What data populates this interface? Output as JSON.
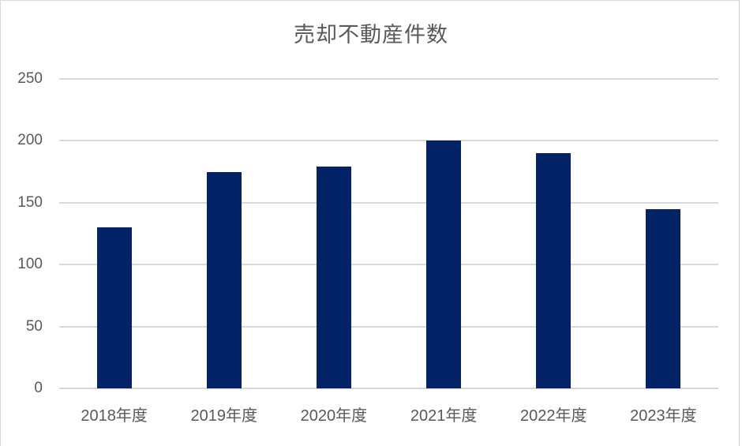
{
  "page": {
    "kind": "excel-style-column-chart-screenshot"
  },
  "colors": {
    "bar": "#042366",
    "gridline": "#d9d9d9",
    "axis_line": "#d6d6d6",
    "label_text": "#595959",
    "background": "#ffffff",
    "edge_border": "#d9d9d9"
  },
  "chart_data": {
    "type": "bar",
    "title": "売却不動産件数",
    "categories": [
      "2018年度",
      "2019年度",
      "2020年度",
      "2021年度",
      "2022年度",
      "2023年度"
    ],
    "values": [
      130,
      175,
      179,
      200,
      190,
      145
    ],
    "xlabel": "",
    "ylabel": "",
    "ylim": [
      0,
      250
    ],
    "yticks": [
      0,
      50,
      100,
      150,
      200,
      250
    ],
    "grid": "horizontal",
    "legend": "none",
    "bar_color": "#042366"
  }
}
